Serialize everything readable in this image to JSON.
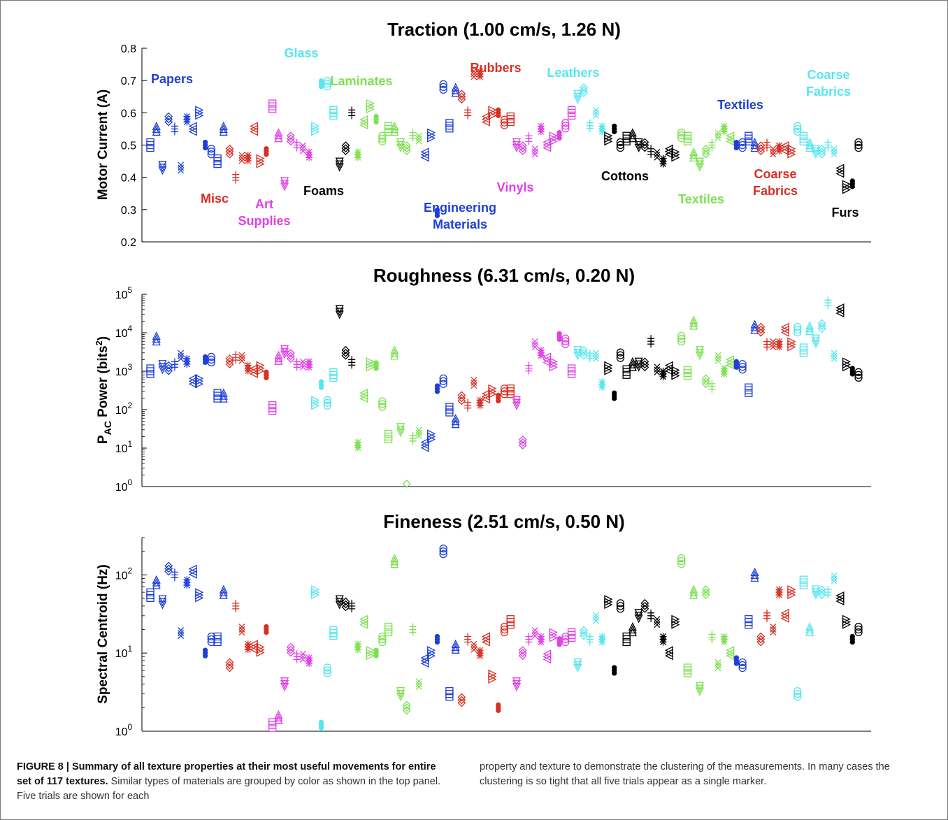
{
  "chart_data": [
    {
      "type": "scatter",
      "title": "Traction (1.00 cm/s, 1.26 N)",
      "ylabel": "Motor Current (A)",
      "yscale": "linear",
      "ylim": [
        0.2,
        0.8
      ],
      "yticks": [
        "0.2",
        "0.3",
        "0.4",
        "0.5",
        "0.6",
        "0.7",
        "0.8"
      ],
      "grid": false,
      "annotations": [
        {
          "text": "Papers",
          "color": "#1f3fd6"
        },
        {
          "text": "Misc",
          "color": "#d63024"
        },
        {
          "text": "Art\nSupplies",
          "color": "#e040e6"
        },
        {
          "text": "Glass",
          "color": "#55e6ee"
        },
        {
          "text": "Foams",
          "color": "#000000"
        },
        {
          "text": "Laminates",
          "color": "#7ee052"
        },
        {
          "text": "Rubbers",
          "color": "#d63024"
        },
        {
          "text": "Engineering\nMaterials",
          "color": "#1f3fd6"
        },
        {
          "text": "Vinyls",
          "color": "#e040e6"
        },
        {
          "text": "Leathers",
          "color": "#55e6ee"
        },
        {
          "text": "Cottons",
          "color": "#000000"
        },
        {
          "text": "Textiles",
          "color": "#7ee052"
        },
        {
          "text": "Textiles",
          "color": "#1f3fd6"
        },
        {
          "text": "Coarse\nFabrics",
          "color": "#d63024"
        },
        {
          "text": "Coarse\nFabrics",
          "color": "#55e6ee"
        },
        {
          "text": "Furs",
          "color": "#000000"
        }
      ],
      "series": [
        {
          "color": "#1f3fd6",
          "x": [
            1,
            2,
            3,
            4,
            5,
            6,
            7,
            8,
            9,
            10,
            11,
            12,
            13
          ],
          "y": [
            0.5,
            0.55,
            0.43,
            0.58,
            0.55,
            0.43,
            0.58,
            0.55,
            0.6,
            0.5,
            0.48,
            0.45,
            0.55
          ]
        },
        {
          "color": "#d63024",
          "x": [
            14,
            15,
            16,
            17,
            18,
            19,
            20
          ],
          "y": [
            0.48,
            0.4,
            0.46,
            0.46,
            0.55,
            0.45,
            0.48
          ]
        },
        {
          "color": "#e040e6",
          "x": [
            21,
            22,
            23,
            24,
            25,
            26,
            27
          ],
          "y": [
            0.62,
            0.53,
            0.38,
            0.52,
            0.5,
            0.49,
            0.47
          ]
        },
        {
          "color": "#55e6ee",
          "x": [
            28,
            29,
            30,
            31
          ],
          "y": [
            0.55,
            0.69,
            0.69,
            0.6
          ]
        },
        {
          "color": "#000000",
          "x": [
            32,
            33,
            34
          ],
          "y": [
            0.44,
            0.49,
            0.6
          ]
        },
        {
          "color": "#7ee052",
          "x": [
            35,
            36,
            37,
            38,
            39,
            40,
            41,
            42,
            43,
            44,
            45
          ],
          "y": [
            0.47,
            0.57,
            0.62,
            0.58,
            0.52,
            0.55,
            0.55,
            0.5,
            0.49,
            0.53,
            0.52
          ]
        },
        {
          "color": "#1f3fd6",
          "x": [
            46,
            47,
            48,
            49,
            50,
            51
          ],
          "y": [
            0.47,
            0.53,
            0.29,
            0.68,
            0.56,
            0.67
          ]
        },
        {
          "color": "#d63024",
          "x": [
            52,
            53,
            54,
            55,
            56,
            57,
            58,
            59,
            60
          ],
          "y": [
            0.65,
            0.6,
            0.72,
            0.72,
            0.58,
            0.6,
            0.6,
            0.57,
            0.58
          ]
        },
        {
          "color": "#e040e6",
          "x": [
            61,
            62,
            63,
            64,
            65,
            66,
            67,
            68,
            69,
            70
          ],
          "y": [
            0.5,
            0.49,
            0.52,
            0.48,
            0.55,
            0.5,
            0.52,
            0.53,
            0.56,
            0.6
          ]
        },
        {
          "color": "#55e6ee",
          "x": [
            71,
            72,
            73,
            74,
            75
          ],
          "y": [
            0.65,
            0.67,
            0.56,
            0.6,
            0.55
          ]
        },
        {
          "color": "#000000",
          "x": [
            76,
            77,
            78,
            79,
            80,
            81,
            82,
            83,
            84,
            85,
            86,
            87
          ],
          "y": [
            0.52,
            0.55,
            0.5,
            0.52,
            0.53,
            0.5,
            0.5,
            0.48,
            0.47,
            0.45,
            0.48,
            0.47
          ]
        },
        {
          "color": "#7ee052",
          "x": [
            88,
            89,
            90,
            91,
            92,
            93,
            94,
            95,
            96
          ],
          "y": [
            0.53,
            0.52,
            0.47,
            0.44,
            0.48,
            0.5,
            0.53,
            0.55,
            0.52
          ]
        },
        {
          "color": "#1f3fd6",
          "x": [
            97,
            98,
            99,
            100
          ],
          "y": [
            0.5,
            0.5,
            0.52,
            0.5
          ]
        },
        {
          "color": "#d63024",
          "x": [
            101,
            102,
            103,
            104,
            105,
            106
          ],
          "y": [
            0.49,
            0.5,
            0.48,
            0.49,
            0.49,
            0.48
          ]
        },
        {
          "color": "#55e6ee",
          "x": [
            107,
            108,
            109,
            110,
            111,
            112,
            113
          ],
          "y": [
            0.55,
            0.52,
            0.5,
            0.48,
            0.48,
            0.5,
            0.48
          ]
        },
        {
          "color": "#000000",
          "x": [
            114,
            115,
            116,
            117
          ],
          "y": [
            0.42,
            0.37,
            0.38,
            0.5
          ]
        }
      ]
    },
    {
      "type": "scatter",
      "title": "Roughness (6.31 cm/s, 0.20 N)",
      "ylabel_main": "P",
      "ylabel_sub": "AC",
      "ylabel_rest": " Power (bits",
      "ylabel_sup": "2",
      "ylabel_end": ")",
      "yscale": "log",
      "ylim": [
        1,
        100000
      ],
      "yticks": [
        "10",
        "10",
        "10",
        "10",
        "10",
        "10"
      ],
      "ytick_exponents": [
        "0",
        "1",
        "2",
        "3",
        "4",
        "5"
      ],
      "grid": false,
      "series": [
        {
          "color": "#1f3fd6",
          "x": [
            1,
            2,
            3,
            4,
            5,
            6,
            7,
            8,
            9,
            10,
            11,
            12,
            13
          ],
          "y": [
            1000,
            7000,
            1300,
            1200,
            1500,
            2500,
            1800,
            550,
            550,
            2000,
            2000,
            230,
            230
          ]
        },
        {
          "color": "#d63024",
          "x": [
            14,
            15,
            16,
            17,
            18,
            19,
            20
          ],
          "y": [
            1800,
            2300,
            2200,
            1200,
            1000,
            1200,
            800
          ]
        },
        {
          "color": "#e040e6",
          "x": [
            21,
            22,
            23,
            24,
            25,
            26,
            27
          ],
          "y": [
            110,
            2200,
            3200,
            2500,
            1500,
            1500,
            1500
          ]
        },
        {
          "color": "#55e6ee",
          "x": [
            28,
            29,
            30,
            31
          ],
          "y": [
            150,
            450,
            150,
            800
          ]
        },
        {
          "color": "#000000",
          "x": [
            32,
            33,
            34
          ],
          "y": [
            35000,
            3000,
            1700
          ]
        },
        {
          "color": "#7ee052",
          "x": [
            35,
            36,
            37,
            38,
            39,
            40,
            41,
            42,
            43,
            44,
            45
          ],
          "y": [
            12,
            230,
            1500,
            1400,
            140,
            20,
            3000,
            30,
            1,
            18,
            25
          ]
        },
        {
          "color": "#1f3fd6",
          "x": [
            46,
            47,
            48,
            49,
            50,
            51
          ],
          "y": [
            12,
            20,
            350,
            550,
            100,
            50
          ]
        },
        {
          "color": "#d63024",
          "x": [
            52,
            53,
            54,
            55,
            56,
            57,
            58,
            59,
            60
          ],
          "y": [
            200,
            130,
            500,
            150,
            220,
            300,
            200,
            300,
            300
          ]
        },
        {
          "color": "#e040e6",
          "x": [
            61,
            62,
            63,
            64,
            65,
            66,
            67,
            68,
            69,
            70
          ],
          "y": [
            150,
            14,
            1200,
            5000,
            3000,
            2000,
            1500,
            8000,
            6000,
            1000
          ]
        },
        {
          "color": "#55e6ee",
          "x": [
            71,
            72,
            73,
            74,
            75
          ],
          "y": [
            3000,
            3000,
            2500,
            2500,
            450
          ]
        },
        {
          "color": "#000000",
          "x": [
            76,
            77,
            78,
            79,
            80,
            81,
            82,
            83,
            84,
            85,
            86,
            87
          ],
          "y": [
            1200,
            230,
            2600,
            950,
            1500,
            1500,
            1500,
            6000,
            1100,
            850,
            1200,
            900
          ]
        },
        {
          "color": "#7ee052",
          "x": [
            88,
            89,
            90,
            91,
            92,
            93,
            94,
            95,
            96
          ],
          "y": [
            7000,
            900,
            18000,
            3000,
            550,
            400,
            2200,
            1000,
            1700
          ]
        },
        {
          "color": "#1f3fd6",
          "x": [
            97,
            98,
            99,
            100
          ],
          "y": [
            1500,
            1300,
            320,
            14000
          ]
        },
        {
          "color": "#d63024",
          "x": [
            101,
            102,
            103,
            104,
            105,
            106
          ],
          "y": [
            12000,
            5000,
            5000,
            5000,
            12000,
            5000
          ]
        },
        {
          "color": "#55e6ee",
          "x": [
            107,
            108,
            109,
            110,
            111,
            112,
            113
          ],
          "y": [
            12000,
            3500,
            13000,
            6000,
            15000,
            60000,
            2500
          ]
        },
        {
          "color": "#000000",
          "x": [
            114,
            115,
            116,
            117
          ],
          "y": [
            38000,
            1500,
            1000,
            800
          ]
        }
      ]
    },
    {
      "type": "scatter",
      "title": "Fineness (2.51 cm/s, 0.50 N)",
      "ylabel": "Spectral Centroid (Hz)",
      "yscale": "log",
      "ylim": [
        1,
        300
      ],
      "yticks": [
        "10",
        "10"
      ],
      "ytick_exponents": [
        "0",
        "1"
      ],
      "ytick_extra": [
        "10",
        "2"
      ],
      "grid": false,
      "series": [
        {
          "color": "#1f3fd6",
          "x": [
            1,
            2,
            3,
            4,
            5,
            6,
            7,
            8,
            9,
            10,
            11,
            12,
            13
          ],
          "y": [
            55,
            80,
            45,
            120,
            100,
            18,
            80,
            110,
            55,
            10,
            15,
            15,
            60
          ]
        },
        {
          "color": "#d63024",
          "x": [
            14,
            15,
            16,
            17,
            18,
            19,
            20
          ],
          "y": [
            7,
            40,
            20,
            12,
            12,
            11,
            20
          ]
        },
        {
          "color": "#e040e6",
          "x": [
            21,
            22,
            23,
            24,
            25,
            26,
            27
          ],
          "y": [
            1.2,
            1.5,
            4,
            11,
            9,
            9,
            8
          ]
        },
        {
          "color": "#55e6ee",
          "x": [
            28,
            29,
            30,
            31
          ],
          "y": [
            60,
            1.2,
            6,
            18
          ]
        },
        {
          "color": "#000000",
          "x": [
            32,
            33,
            34
          ],
          "y": [
            45,
            42,
            40
          ]
        },
        {
          "color": "#7ee052",
          "x": [
            35,
            36,
            37,
            38,
            39,
            40,
            41,
            42,
            43,
            44,
            45
          ],
          "y": [
            12,
            25,
            10,
            10,
            15,
            20,
            150,
            3,
            2,
            20,
            4
          ]
        },
        {
          "color": "#1f3fd6",
          "x": [
            46,
            47,
            48,
            49,
            50,
            51
          ],
          "y": [
            8,
            10,
            15,
            200,
            3,
            12
          ]
        },
        {
          "color": "#d63024",
          "x": [
            52,
            53,
            54,
            55,
            56,
            57,
            58,
            59,
            60
          ],
          "y": [
            2.5,
            15,
            12,
            10,
            15,
            5,
            2,
            20,
            25
          ]
        },
        {
          "color": "#e040e6",
          "x": [
            61,
            62,
            63,
            64,
            65,
            66,
            67,
            68,
            69,
            70
          ],
          "y": [
            4,
            10,
            15,
            18,
            15,
            9,
            17,
            14,
            15,
            17
          ]
        },
        {
          "color": "#55e6ee",
          "x": [
            71,
            72,
            73,
            74,
            75
          ],
          "y": [
            7,
            18,
            15,
            28,
            15
          ]
        },
        {
          "color": "#000000",
          "x": [
            76,
            77,
            78,
            79,
            80,
            81,
            82,
            83,
            84,
            85,
            86,
            87
          ],
          "y": [
            45,
            6,
            40,
            15,
            20,
            30,
            40,
            30,
            25,
            15,
            10,
            25
          ]
        },
        {
          "color": "#7ee052",
          "x": [
            88,
            89,
            90,
            91,
            92,
            93,
            94,
            95,
            96
          ],
          "y": [
            150,
            6,
            60,
            3.5,
            60,
            16,
            7,
            15,
            10
          ]
        },
        {
          "color": "#1f3fd6",
          "x": [
            97,
            98,
            99,
            100
          ],
          "y": [
            8,
            7,
            25,
            100
          ]
        },
        {
          "color": "#d63024",
          "x": [
            101,
            102,
            103,
            104,
            105,
            106
          ],
          "y": [
            15,
            30,
            20,
            60,
            30,
            60
          ]
        },
        {
          "color": "#55e6ee",
          "x": [
            107,
            108,
            109,
            110,
            111,
            112,
            113
          ],
          "y": [
            3,
            80,
            20,
            60,
            60,
            60,
            90
          ]
        },
        {
          "color": "#000000",
          "x": [
            114,
            115,
            116,
            117
          ],
          "y": [
            50,
            25,
            15,
            20
          ]
        }
      ]
    }
  ],
  "caption": {
    "label": "FIGURE 8 | Summary of all texture properties at their most useful movements for entire set of 117 textures.",
    "text_part1": " Similar types of materials are grouped by color as shown in the top panel. Five trials are shown for each",
    "text_part2": "property and texture to demonstrate the clustering of the measurements. In many cases the clustering is so tight that all five trials appear as a single marker."
  }
}
